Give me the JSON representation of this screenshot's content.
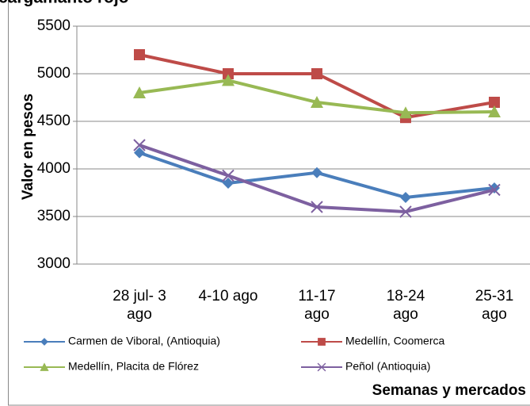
{
  "chart_data": {
    "type": "line",
    "title": "cargamanto rojo",
    "y_label": "Valor en pesos",
    "x_label": "Semanas y mercados",
    "categories": [
      "28 jul- 3 ago",
      "4-10 ago",
      "11-17 ago",
      "18-24 ago",
      "25-31 ago"
    ],
    "series": [
      {
        "name": "Carmen de Viboral, (Antioquia)",
        "color": "#4a7ebb",
        "marker": "diamond",
        "values": [
          4170,
          3850,
          3960,
          3700,
          3800
        ]
      },
      {
        "name": "Medellín, Coomerca",
        "color": "#be4b48",
        "marker": "square",
        "values": [
          5200,
          5000,
          5000,
          4540,
          4700
        ]
      },
      {
        "name": "Medellín, Placita de Flórez",
        "color": "#98b954",
        "marker": "triangle",
        "values": [
          4800,
          4930,
          4700,
          4590,
          4600
        ]
      },
      {
        "name": "Peñol (Antioquia)",
        "color": "#7d60a0",
        "marker": "x",
        "values": [
          4250,
          3930,
          3600,
          3550,
          3780
        ]
      }
    ],
    "ylim": [
      3000,
      5500
    ],
    "yticks": [
      3000,
      3500,
      4000,
      4500,
      5000,
      5500
    ],
    "grid": true
  }
}
